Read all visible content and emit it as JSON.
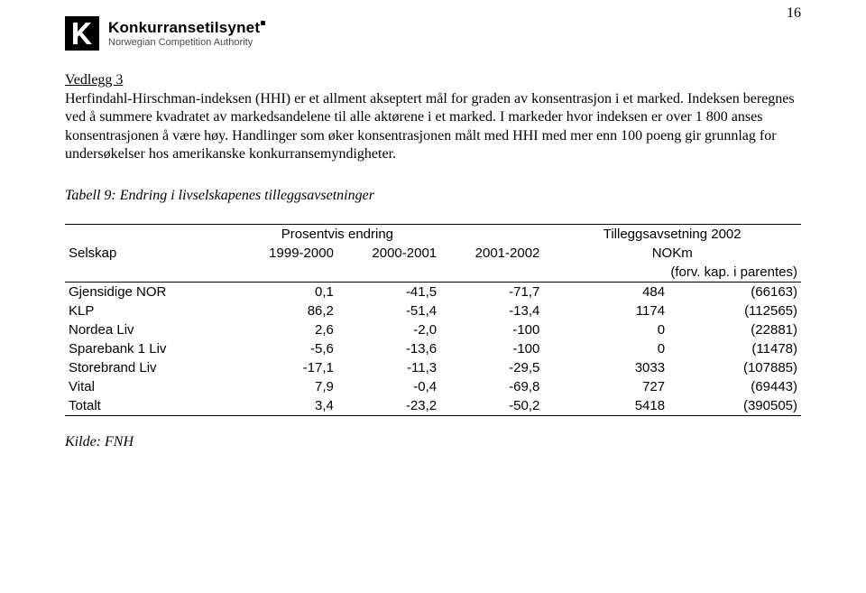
{
  "page_number": "16",
  "logo": {
    "main": "Konkurransetilsynet",
    "sub": "Norwegian Competition Authority"
  },
  "heading": "Vedlegg 3",
  "paragraph": "Herfindahl-Hirschman-indeksen (HHI) er et allment akseptert mål for graden av konsentrasjon i et marked. Indeksen beregnes ved å summere kvadratet av markedsandelene til alle aktørene i et marked. I markeder hvor indeksen er over 1 800 anses konsentrasjonen å være høy. Handlinger som øker konsentrasjonen målt med HHI med mer enn 100 poeng gir grunnlag for undersøkelser hos amerikanske konkurransemyndigheter.",
  "table_caption": "Tabell 9: Endring i livselskapenes tilleggsavsetninger",
  "table": {
    "head_span_1": "Prosentvis endring",
    "head_span_2": "Tilleggsavsetning 2002",
    "col_selskap": "Selskap",
    "col_1999": "1999-2000",
    "col_2000": "2000-2001",
    "col_2001": "2001-2002",
    "col_nokm": "NOKm",
    "col_paren": "(forv. kap. i parentes)",
    "rows": [
      {
        "name": "Gjensidige NOR",
        "c1": "0,1",
        "c2": "-41,5",
        "c3": "-71,7",
        "v": "484",
        "p": "(66163)"
      },
      {
        "name": "KLP",
        "c1": "86,2",
        "c2": "-51,4",
        "c3": "-13,4",
        "v": "1174",
        "p": "(112565)"
      },
      {
        "name": "Nordea Liv",
        "c1": "2,6",
        "c2": "-2,0",
        "c3": "-100",
        "v": "0",
        "p": "(22881)"
      },
      {
        "name": "Sparebank 1 Liv",
        "c1": "-5,6",
        "c2": "-13,6",
        "c3": "-100",
        "v": "0",
        "p": "(11478)"
      },
      {
        "name": "Storebrand Liv",
        "c1": "-17,1",
        "c2": "-11,3",
        "c3": "-29,5",
        "v": "3033",
        "p": "(107885)"
      },
      {
        "name": "Vital",
        "c1": "7,9",
        "c2": "-0,4",
        "c3": "-69,8",
        "v": "727",
        "p": "(69443)"
      },
      {
        "name": "Totalt",
        "c1": "3,4",
        "c2": "-23,2",
        "c3": "-50,2",
        "v": "5418",
        "p": "(390505)"
      }
    ]
  },
  "source_label": "Kilde: FNH"
}
